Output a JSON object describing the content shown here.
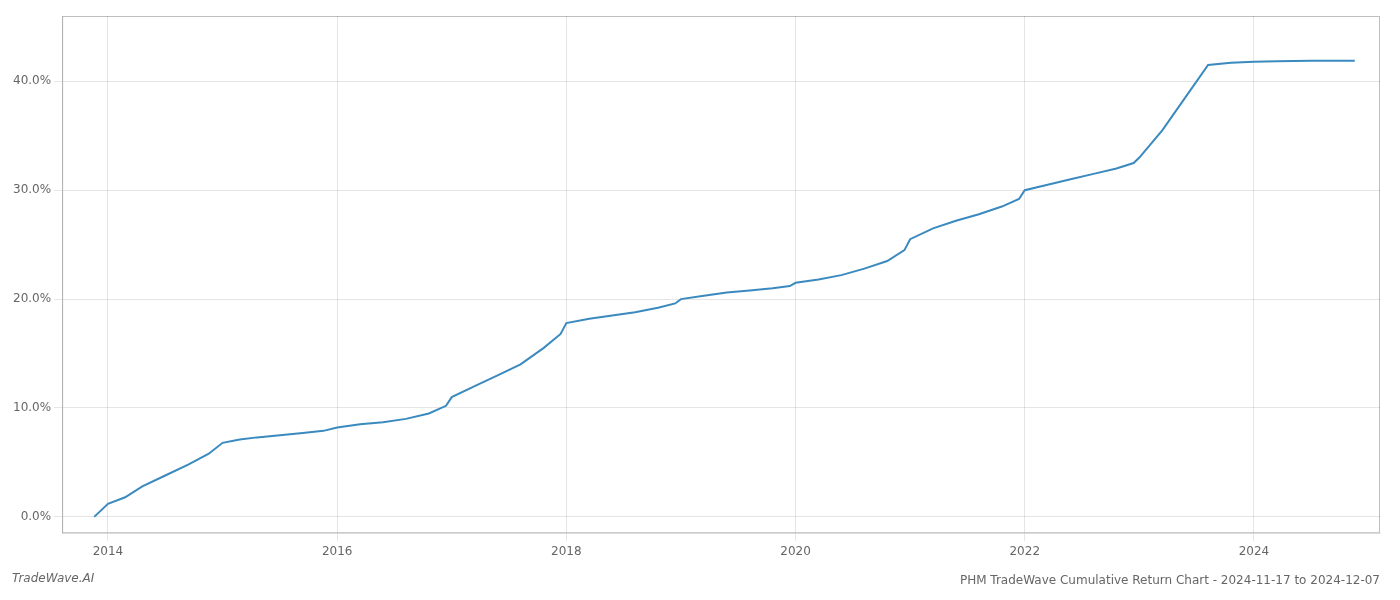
{
  "chart_data": {
    "type": "line",
    "title": "PHM TradeWave Cumulative Return Chart - 2024-11-17 to 2024-12-07",
    "annotations": [
      "TradeWave.AI"
    ],
    "color": "#3a8abf",
    "x": [
      2013.88,
      2014.0,
      2014.15,
      2014.3,
      2014.5,
      2014.7,
      2014.88,
      2015.0,
      2015.15,
      2015.3,
      2015.5,
      2015.7,
      2015.88,
      2016.0,
      2016.2,
      2016.4,
      2016.6,
      2016.8,
      2016.95,
      2017.0,
      2017.2,
      2017.4,
      2017.6,
      2017.8,
      2017.95,
      2018.0,
      2018.2,
      2018.4,
      2018.6,
      2018.8,
      2018.95,
      2019.0,
      2019.2,
      2019.4,
      2019.6,
      2019.8,
      2019.95,
      2020.0,
      2020.2,
      2020.4,
      2020.6,
      2020.8,
      2020.95,
      2021.0,
      2021.2,
      2021.4,
      2021.6,
      2021.8,
      2021.95,
      2022.0,
      2022.2,
      2022.4,
      2022.6,
      2022.8,
      2022.95,
      2023.0,
      2023.2,
      2023.4,
      2023.6,
      2023.8,
      2024.0,
      2024.2,
      2024.5,
      2024.88
    ],
    "values": [
      0.0,
      1.2,
      1.8,
      2.8,
      3.8,
      4.8,
      5.8,
      6.8,
      7.1,
      7.3,
      7.5,
      7.7,
      7.9,
      8.2,
      8.5,
      8.7,
      9.0,
      9.5,
      10.2,
      11.0,
      12.0,
      13.0,
      14.0,
      15.5,
      16.8,
      17.8,
      18.2,
      18.5,
      18.8,
      19.2,
      19.6,
      20.0,
      20.3,
      20.6,
      20.8,
      21.0,
      21.2,
      21.5,
      21.8,
      22.2,
      22.8,
      23.5,
      24.5,
      25.5,
      26.5,
      27.2,
      27.8,
      28.5,
      29.2,
      30.0,
      30.5,
      31.0,
      31.5,
      32.0,
      32.5,
      33.0,
      35.5,
      38.5,
      41.5,
      41.7,
      41.8,
      41.85,
      41.9,
      41.9
    ],
    "xlim": [
      2013.6,
      2025.1
    ],
    "ylim": [
      -1.5,
      46.0
    ],
    "xticks": [
      2014,
      2016,
      2018,
      2020,
      2022,
      2024
    ],
    "yticks": [
      {
        "value": 0.0,
        "label": "0.0%"
      },
      {
        "value": 10.0,
        "label": "10.0%"
      },
      {
        "value": 20.0,
        "label": "20.0%"
      },
      {
        "value": 30.0,
        "label": "30.0%"
      },
      {
        "value": 40.0,
        "label": "40.0%"
      }
    ],
    "grid": true
  }
}
